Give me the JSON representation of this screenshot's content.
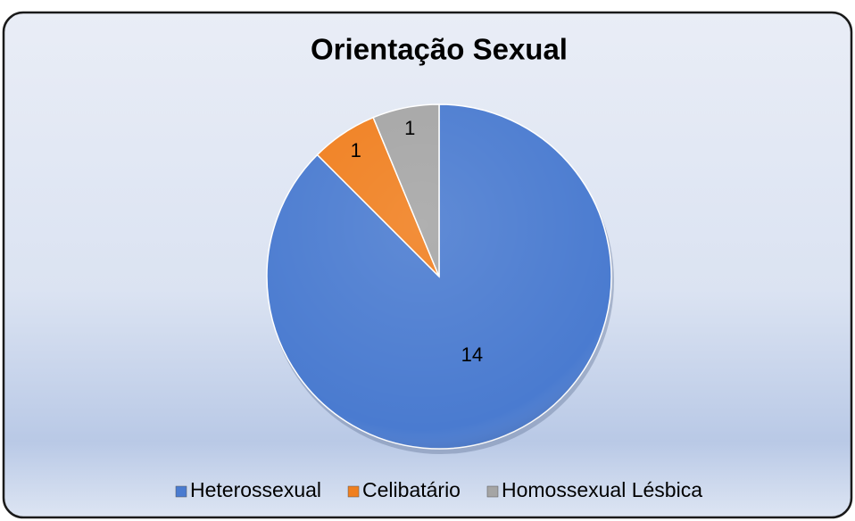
{
  "chart_data": {
    "type": "pie",
    "title": "Orientação Sexual",
    "categories": [
      "Heterossexual",
      "Celibatário",
      "Homossexual Lésbica"
    ],
    "values": [
      14,
      1,
      1
    ],
    "colors": [
      "#4a7bd0",
      "#f07f1f",
      "#a5a5a5"
    ],
    "legend": "bottom"
  }
}
